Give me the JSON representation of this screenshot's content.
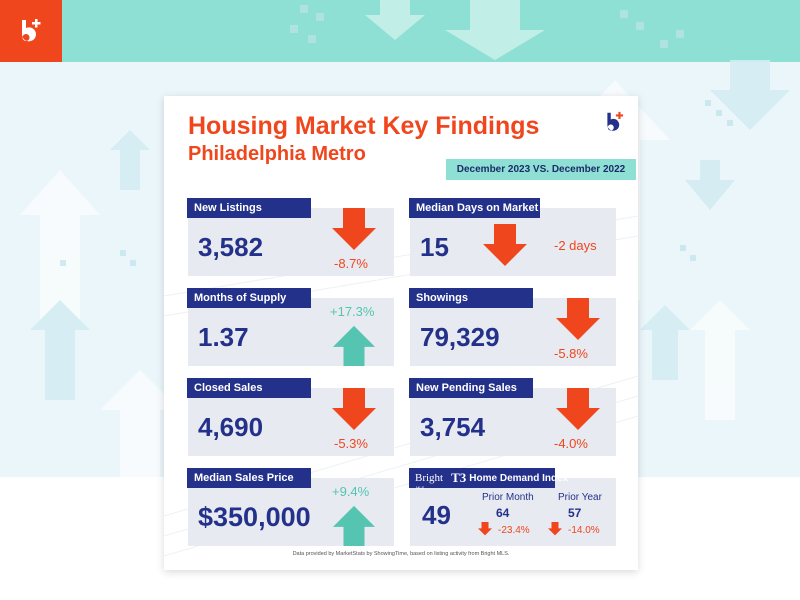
{
  "header": {
    "title": "Housing Market Key Findings",
    "subtitle": "Philadelphia Metro",
    "comparison": "December 2023 VS. December 2022"
  },
  "colors": {
    "accent": "#f0461d",
    "navy": "#24318a",
    "teal": "#8fe0d4",
    "positive": "#55c4b0"
  },
  "metrics": {
    "new_listings": {
      "label": "New Listings",
      "value": "3,582",
      "change": "-8.7%",
      "direction": "down"
    },
    "median_days": {
      "label": "Median Days on Market",
      "value": "15",
      "change": "-2 days",
      "direction": "down"
    },
    "months_supply": {
      "label": "Months of Supply",
      "value": "1.37",
      "change": "+17.3%",
      "direction": "up"
    },
    "showings": {
      "label": "Showings",
      "value": "79,329",
      "change": "-5.8%",
      "direction": "down"
    },
    "closed_sales": {
      "label": "Closed Sales",
      "value": "4,690",
      "change": "-5.3%",
      "direction": "down"
    },
    "new_pending": {
      "label": "New Pending Sales",
      "value": "3,754",
      "change": "-4.0%",
      "direction": "down"
    },
    "median_price": {
      "label": "Median Sales Price",
      "value": "$350,000",
      "change": "+9.4%",
      "direction": "up"
    }
  },
  "demand_index": {
    "brand": "Bright",
    "brand_sub": "MLS",
    "t3": "T3",
    "name": "Home Demand Index",
    "value": "49",
    "prior_month": {
      "label": "Prior Month",
      "value": "64",
      "change": "-23.4%"
    },
    "prior_year": {
      "label": "Prior Year",
      "value": "57",
      "change": "-14.0%"
    }
  },
  "footer": "Data provided by MarketStats by ShowingTime, based on listing activity from Bright MLS.",
  "icons": [
    "bright-logo-icon",
    "arrow-down-icon",
    "arrow-up-icon"
  ]
}
